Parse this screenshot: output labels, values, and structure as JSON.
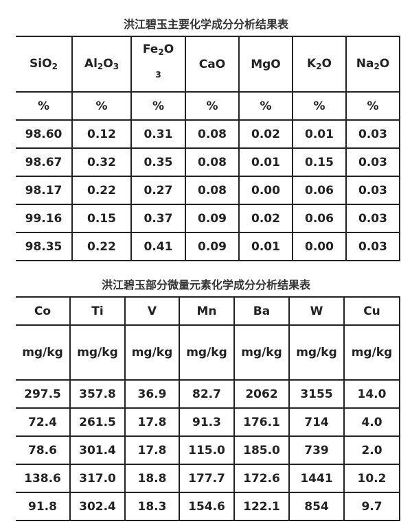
{
  "table1": {
    "title": "洪江碧玉主要化学成分分析结果表",
    "headers": [
      {
        "base": "SiO",
        "sub": "2",
        "tail": ""
      },
      {
        "base": "Al",
        "sub": "2",
        "tail": "O",
        "sub2": "3"
      },
      {
        "base": "Fe",
        "sub": "2",
        "tail": "O",
        "sub2": "3"
      },
      {
        "base": "CaO",
        "sub": "",
        "tail": ""
      },
      {
        "base": "MgO",
        "sub": "",
        "tail": ""
      },
      {
        "base": "K",
        "sub": "2",
        "tail": "O"
      },
      {
        "base": "Na",
        "sub": "2",
        "tail": "O"
      }
    ],
    "units": [
      "%",
      "%",
      "%",
      "%",
      "%",
      "%",
      "%"
    ],
    "rows": [
      [
        "98.60",
        "0.12",
        "0.31",
        "0.08",
        "0.02",
        "0.01",
        "0.03"
      ],
      [
        "98.67",
        "0.32",
        "0.35",
        "0.08",
        "0.01",
        "0.15",
        "0.03"
      ],
      [
        "98.17",
        "0.22",
        "0.27",
        "0.08",
        "0.00",
        "0.06",
        "0.03"
      ],
      [
        "99.16",
        "0.15",
        "0.37",
        "0.09",
        "0.02",
        "0.06",
        "0.03"
      ],
      [
        "98.35",
        "0.22",
        "0.41",
        "0.09",
        "0.01",
        "0.00",
        "0.03"
      ]
    ]
  },
  "table2": {
    "title": "洪江碧玉部分微量元素化学成分分析结果表",
    "headers": [
      "Co",
      "Ti",
      "V",
      "Mn",
      "Ba",
      "W",
      "Cu"
    ],
    "units": [
      "mg/kg",
      "mg/kg",
      "mg/kg",
      "mg/kg",
      "mg/kg",
      "mg/kg",
      "mg/kg"
    ],
    "rows": [
      [
        "297.5",
        "357.8",
        "36.9",
        "82.7",
        "2062",
        "3155",
        "14.0"
      ],
      [
        "72.4",
        "261.5",
        "17.8",
        "91.3",
        "176.1",
        "714",
        "4.0"
      ],
      [
        "78.6",
        "301.4",
        "17.8",
        "115.0",
        "185.0",
        "739",
        "2.0"
      ],
      [
        "138.6",
        "317.0",
        "18.8",
        "177.7",
        "172.6",
        "1441",
        "10.2"
      ],
      [
        "91.8",
        "302.4",
        "18.3",
        "154.6",
        "122.1",
        "854",
        "9.7"
      ]
    ]
  }
}
